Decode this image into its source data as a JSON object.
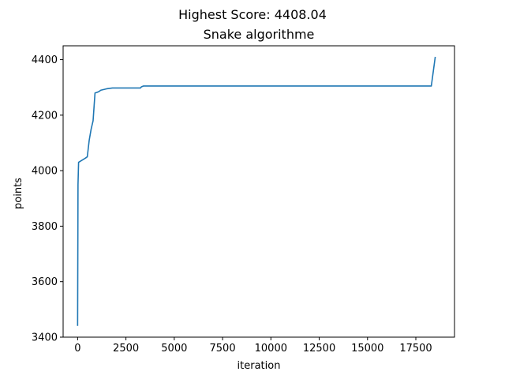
{
  "chart_data": {
    "type": "line",
    "suptitle": "Highest Score: 4408.04",
    "title": "Snake algorithme",
    "xlabel": "iteration",
    "ylabel": "points",
    "xlim": [
      -750,
      19500
    ],
    "ylim": [
      3400,
      4450
    ],
    "x_ticks": [
      0,
      2500,
      5000,
      7500,
      10000,
      12500,
      15000,
      17500
    ],
    "x_tick_labels": [
      "0",
      "2500",
      "5000",
      "7500",
      "10000",
      "12500",
      "15000",
      "17500"
    ],
    "y_ticks": [
      3400,
      3600,
      3800,
      4000,
      4200,
      4400
    ],
    "y_tick_labels": [
      "3400",
      "3600",
      "3800",
      "4000",
      "4200",
      "4400"
    ],
    "grid": false,
    "line_color": "#1f77b4",
    "series": [
      {
        "x": [
          0,
          20,
          50,
          400,
          500,
          550,
          600,
          700,
          800,
          850,
          900,
          1000,
          1100,
          1200,
          1500,
          1800,
          2500,
          3250,
          3300,
          3400,
          5000,
          10000,
          15000,
          18300,
          18500
        ],
        "y": [
          3443,
          3950,
          4030,
          4045,
          4050,
          4080,
          4110,
          4150,
          4180,
          4230,
          4280,
          4282,
          4285,
          4290,
          4295,
          4298,
          4298,
          4298,
          4302,
          4305,
          4305,
          4305,
          4305,
          4305,
          4408.04
        ]
      }
    ]
  }
}
